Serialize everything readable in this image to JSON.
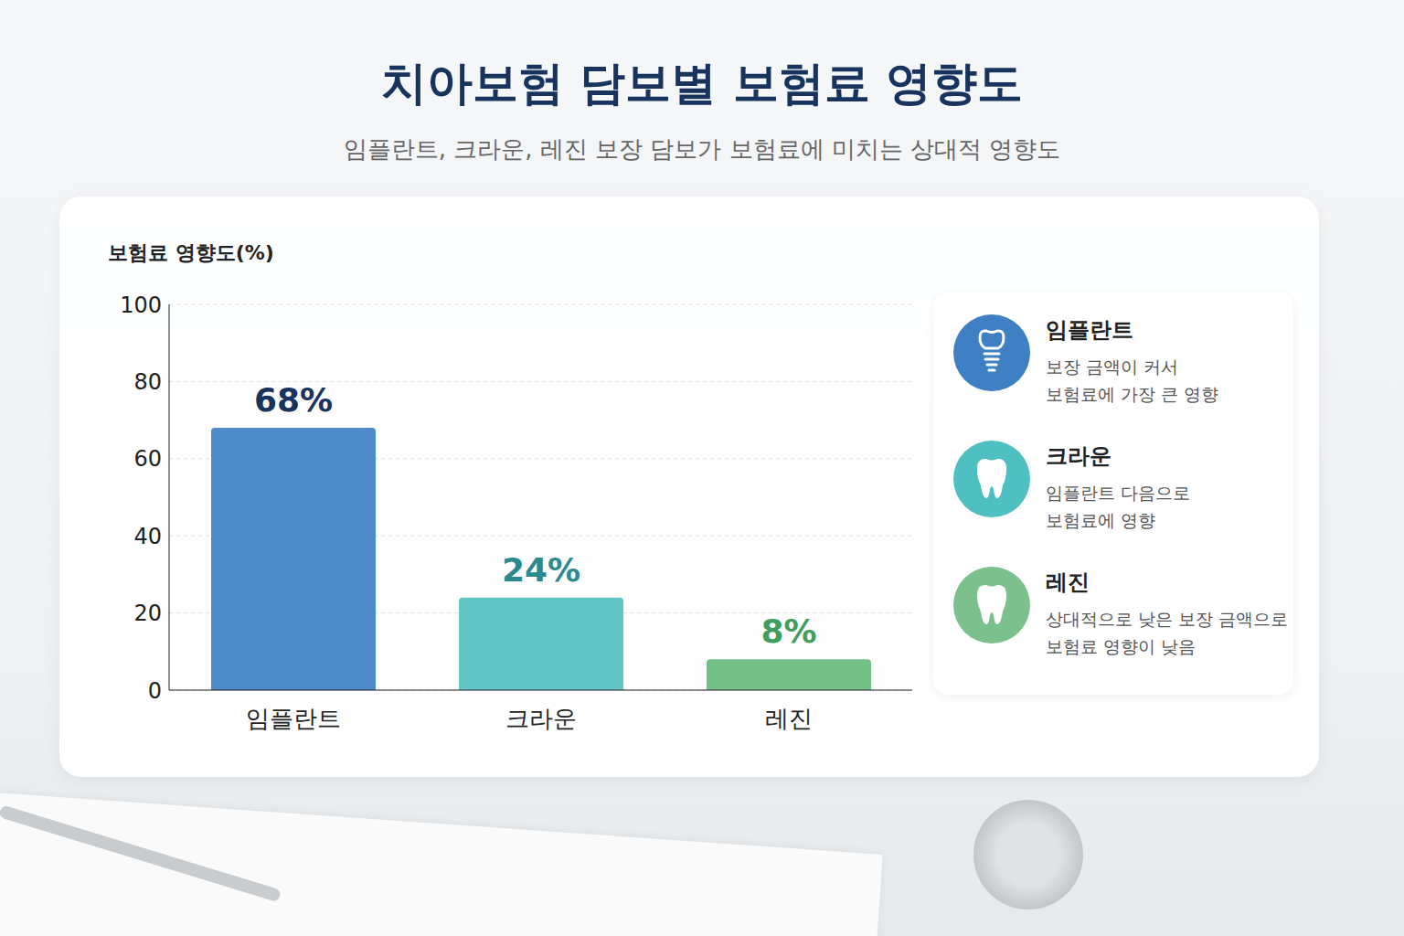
{
  "chart_data": {
    "type": "bar",
    "title": "치아보험 담보별 보험료 영향도",
    "subtitle": "임플란트, 크라운, 레진 보장 담보가 보험료에 미치는 상대적 영향도",
    "y_label": "보험료 영향도(%)",
    "categories": [
      "임플란트",
      "크라운",
      "레진"
    ],
    "values": [
      68,
      24,
      8
    ],
    "value_labels": [
      "68%",
      "24%",
      "8%"
    ],
    "colors": [
      "#4d8bcb",
      "#62c5c6",
      "#72bf88"
    ],
    "ylim": [
      0,
      100
    ],
    "yticks": [
      0,
      20,
      40,
      60,
      80,
      100
    ],
    "grid": true,
    "data_labels": true,
    "annotations": [
      {
        "title": "임플란트",
        "lines": [
          "보장 금액이 커서",
          "보험료에 가장 큰 영향"
        ]
      },
      {
        "title": "크라운",
        "lines": [
          "임플란트 다음으로",
          "보험료에 영향"
        ]
      },
      {
        "title": "레진",
        "lines": [
          "상대적으로 낮은 보장 금액으로",
          "보험료 영향이 낮음"
        ]
      }
    ]
  }
}
